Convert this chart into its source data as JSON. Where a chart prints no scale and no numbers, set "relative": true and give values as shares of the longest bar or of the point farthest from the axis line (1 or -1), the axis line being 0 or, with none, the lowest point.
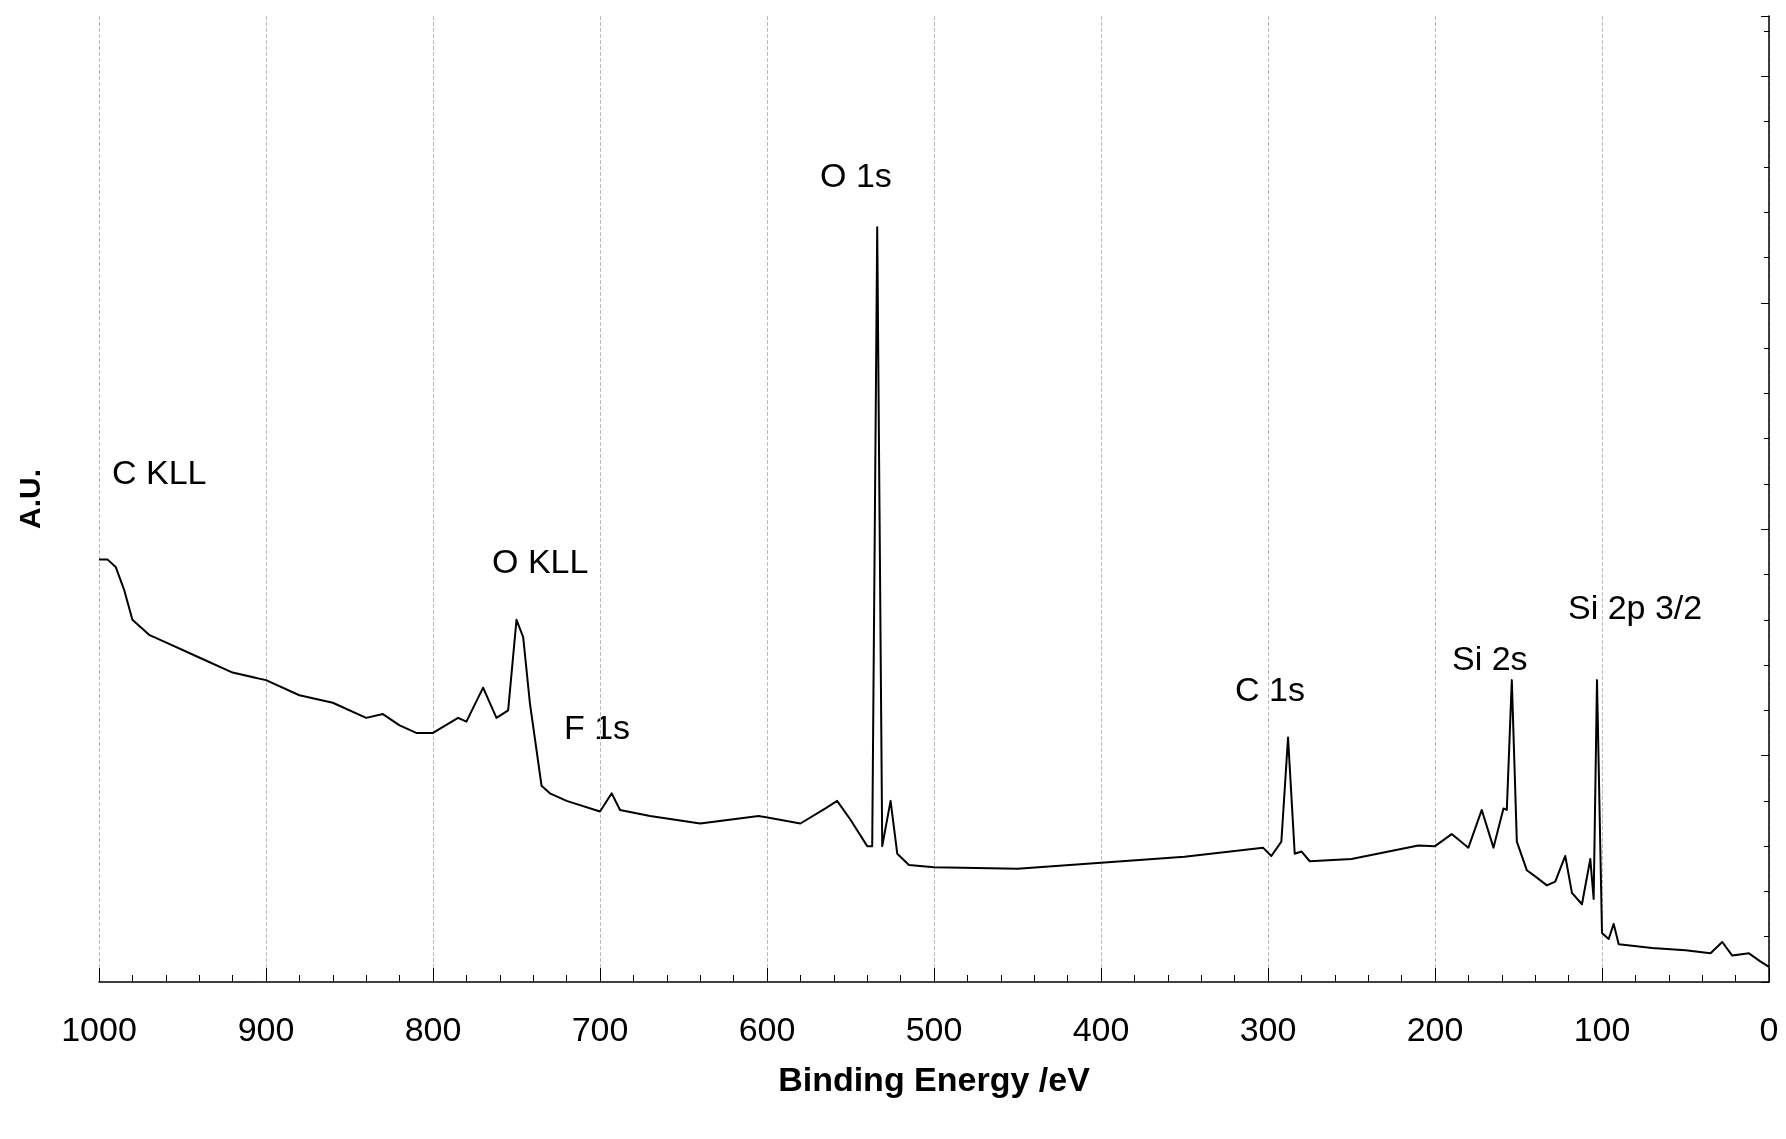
{
  "chart_data": {
    "type": "line",
    "relative": true,
    "xlabel": "Binding Energy /eV",
    "ylabel": "A.U.",
    "xlim": [
      1000,
      0
    ],
    "xticks": [
      1000,
      900,
      800,
      700,
      600,
      500,
      400,
      300,
      200,
      100,
      0
    ],
    "grid": "x",
    "marker": "none",
    "line_style": "solid",
    "tick_labels": "x",
    "x": [
      1000,
      995,
      990,
      985,
      980,
      970,
      960,
      940,
      920,
      900,
      880,
      860,
      840,
      830,
      820,
      810,
      800,
      785,
      780,
      770,
      762,
      755,
      750,
      746,
      742,
      735,
      730,
      720,
      700,
      693,
      688,
      670,
      640,
      605,
      580,
      565,
      558,
      550,
      540,
      537,
      534,
      531,
      526,
      522,
      515,
      500,
      450,
      400,
      350,
      303,
      298,
      292,
      288,
      284,
      280,
      275,
      250,
      210,
      200,
      190,
      180,
      172,
      165,
      159,
      157,
      154,
      151,
      145,
      140,
      133,
      128,
      122,
      118,
      112,
      107,
      105,
      103,
      100,
      96,
      93,
      90,
      70,
      50,
      35,
      28,
      22,
      12,
      5,
      0
    ],
    "series": [
      {
        "color": "#000000",
        "values": [
          0.56,
          0.56,
          0.55,
          0.52,
          0.48,
          0.46,
          0.45,
          0.43,
          0.41,
          0.4,
          0.38,
          0.37,
          0.35,
          0.355,
          0.34,
          0.33,
          0.33,
          0.35,
          0.345,
          0.39,
          0.35,
          0.36,
          0.48,
          0.457,
          0.37,
          0.26,
          0.25,
          0.24,
          0.226,
          0.25,
          0.228,
          0.22,
          0.21,
          0.22,
          0.21,
          0.23,
          0.24,
          0.215,
          0.18,
          0.18,
          1.0,
          0.18,
          0.24,
          0.17,
          0.155,
          0.152,
          0.15,
          0.158,
          0.166,
          0.178,
          0.167,
          0.186,
          0.324,
          0.17,
          0.173,
          0.16,
          0.163,
          0.181,
          0.18,
          0.196,
          0.178,
          0.228,
          0.178,
          0.23,
          0.228,
          0.4,
          0.186,
          0.148,
          0.14,
          0.128,
          0.133,
          0.167,
          0.118,
          0.103,
          0.163,
          0.11,
          0.4,
          0.065,
          0.057,
          0.077,
          0.05,
          0.045,
          0.042,
          0.038,
          0.053,
          0.035,
          0.038,
          0.027,
          0.02
        ]
      }
    ],
    "annotations": [
      "C KLL",
      "O KLL",
      "F 1s",
      "O 1s",
      "C 1s",
      "Si 2s",
      "Si 2p 3/2"
    ]
  }
}
